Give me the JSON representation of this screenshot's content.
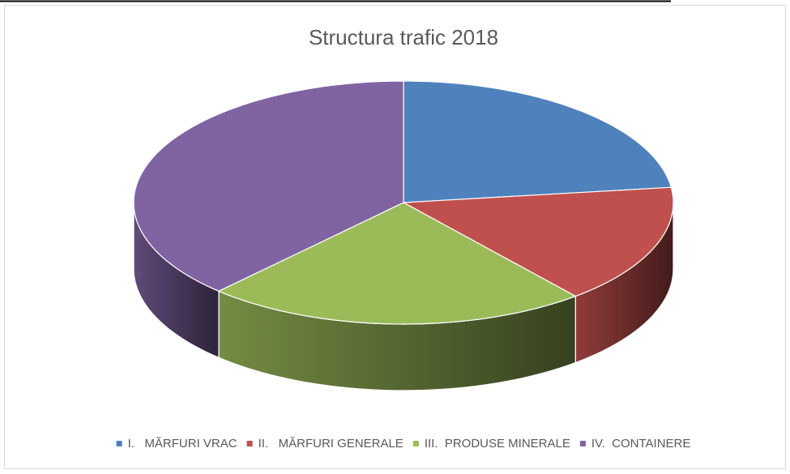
{
  "chart_data": {
    "type": "pie3d",
    "title": "Structura trafic 2018",
    "categories": [
      "I.   MĂRFURI VRAC",
      "II.   MĂRFURI GENERALE",
      "III.  PRODUSE MINERALE",
      "IV.  CONTAINERE"
    ],
    "values": [
      23,
      16,
      23,
      38
    ],
    "colors": [
      "#4f81bd",
      "#c0504d",
      "#9bbb59",
      "#8064a2"
    ],
    "legend": "bottom"
  }
}
